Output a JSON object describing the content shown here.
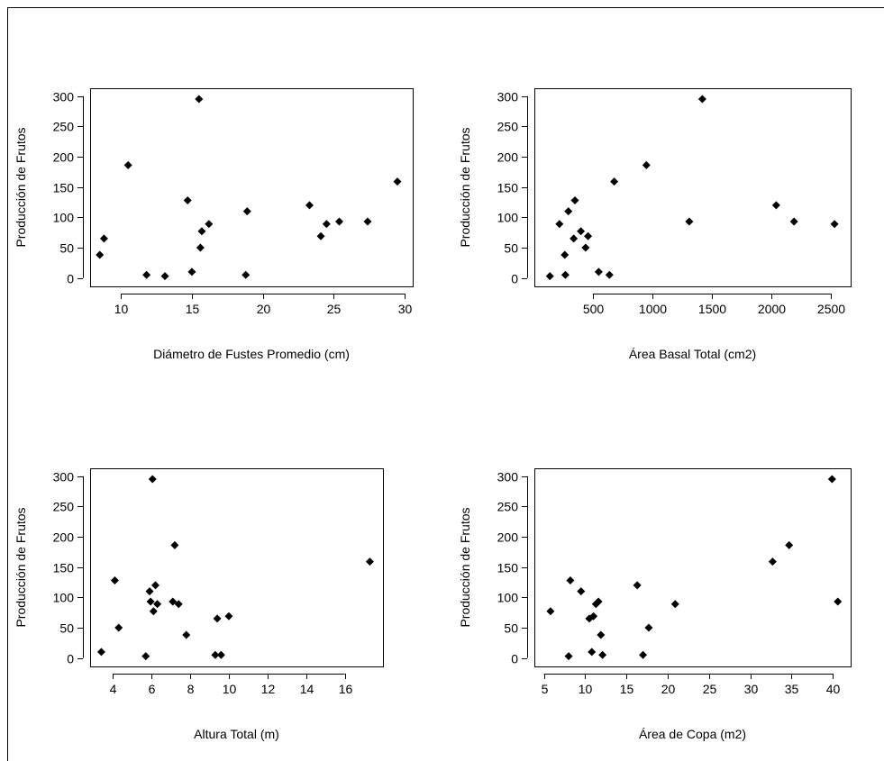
{
  "chart_data": [
    {
      "type": "scatter",
      "title": "",
      "xlabel": "Diámetro de Fustes Promedio (cm)",
      "ylabel": "Producción de Frutos",
      "xlim": [
        8.2,
        30.2
      ],
      "ylim": [
        -5,
        304
      ],
      "xticks": [
        10,
        15,
        20,
        25,
        30
      ],
      "yticks": [
        0,
        50,
        100,
        150,
        200,
        250,
        300
      ],
      "marker": "diamond",
      "grid": false,
      "points": [
        {
          "x": 8.5,
          "y": 38
        },
        {
          "x": 8.8,
          "y": 65
        },
        {
          "x": 10.5,
          "y": 186
        },
        {
          "x": 11.8,
          "y": 5
        },
        {
          "x": 13.1,
          "y": 3
        },
        {
          "x": 14.7,
          "y": 128
        },
        {
          "x": 15.0,
          "y": 10
        },
        {
          "x": 15.5,
          "y": 295
        },
        {
          "x": 15.6,
          "y": 50
        },
        {
          "x": 15.7,
          "y": 77
        },
        {
          "x": 16.2,
          "y": 89
        },
        {
          "x": 18.8,
          "y": 5
        },
        {
          "x": 18.9,
          "y": 110
        },
        {
          "x": 23.3,
          "y": 120
        },
        {
          "x": 24.1,
          "y": 69
        },
        {
          "x": 24.5,
          "y": 89
        },
        {
          "x": 25.4,
          "y": 93
        },
        {
          "x": 27.4,
          "y": 93
        },
        {
          "x": 29.5,
          "y": 159
        }
      ]
    },
    {
      "type": "scatter",
      "title": "",
      "xlabel": "Área Basal Total (cm2)",
      "ylabel": "Producción de Frutos",
      "xlim": [
        55,
        2620
      ],
      "ylim": [
        -5,
        304
      ],
      "xticks": [
        500,
        1000,
        1500,
        2000,
        2500
      ],
      "yticks": [
        0,
        50,
        100,
        150,
        200,
        250,
        300
      ],
      "marker": "diamond",
      "grid": false,
      "points": [
        {
          "x": 140,
          "y": 3
        },
        {
          "x": 220,
          "y": 89
        },
        {
          "x": 265,
          "y": 38
        },
        {
          "x": 270,
          "y": 5
        },
        {
          "x": 295,
          "y": 110
        },
        {
          "x": 340,
          "y": 65
        },
        {
          "x": 350,
          "y": 128
        },
        {
          "x": 400,
          "y": 77
        },
        {
          "x": 440,
          "y": 50
        },
        {
          "x": 460,
          "y": 69
        },
        {
          "x": 550,
          "y": 10
        },
        {
          "x": 640,
          "y": 5
        },
        {
          "x": 680,
          "y": 159
        },
        {
          "x": 950,
          "y": 186
        },
        {
          "x": 1310,
          "y": 93
        },
        {
          "x": 1420,
          "y": 295
        },
        {
          "x": 2040,
          "y": 120
        },
        {
          "x": 2190,
          "y": 93
        },
        {
          "x": 2530,
          "y": 89
        }
      ]
    },
    {
      "type": "scatter",
      "title": "",
      "xlabel": "Altura Total (m)",
      "ylabel": "Producción de Frutos",
      "xlim": [
        3.1,
        17.7
      ],
      "ylim": [
        -5,
        304
      ],
      "xticks": [
        4,
        6,
        8,
        10,
        12,
        14,
        16
      ],
      "yticks": [
        0,
        50,
        100,
        150,
        200,
        250,
        300
      ],
      "marker": "diamond",
      "grid": false,
      "points": [
        {
          "x": 3.4,
          "y": 10
        },
        {
          "x": 4.1,
          "y": 128
        },
        {
          "x": 4.3,
          "y": 50
        },
        {
          "x": 5.7,
          "y": 3
        },
        {
          "x": 5.9,
          "y": 110
        },
        {
          "x": 5.95,
          "y": 93
        },
        {
          "x": 6.05,
          "y": 295
        },
        {
          "x": 6.1,
          "y": 77
        },
        {
          "x": 6.2,
          "y": 120
        },
        {
          "x": 6.3,
          "y": 89
        },
        {
          "x": 7.1,
          "y": 93
        },
        {
          "x": 7.2,
          "y": 186
        },
        {
          "x": 7.4,
          "y": 89
        },
        {
          "x": 7.8,
          "y": 38
        },
        {
          "x": 9.3,
          "y": 5
        },
        {
          "x": 9.4,
          "y": 65
        },
        {
          "x": 9.6,
          "y": 5
        },
        {
          "x": 10.0,
          "y": 69
        },
        {
          "x": 17.3,
          "y": 159
        }
      ]
    },
    {
      "type": "scatter",
      "title": "",
      "xlabel": "Área de Copa (m2)",
      "ylabel": "Producción de Frutos",
      "xlim": [
        4.5,
        41.5
      ],
      "ylim": [
        -5,
        304
      ],
      "xticks": [
        5,
        10,
        15,
        20,
        25,
        30,
        35,
        40
      ],
      "yticks": [
        0,
        50,
        100,
        150,
        200,
        250,
        300
      ],
      "marker": "diamond",
      "grid": false,
      "points": [
        {
          "x": 5.8,
          "y": 77
        },
        {
          "x": 8.0,
          "y": 3
        },
        {
          "x": 8.2,
          "y": 128
        },
        {
          "x": 9.5,
          "y": 110
        },
        {
          "x": 10.5,
          "y": 65
        },
        {
          "x": 10.8,
          "y": 10
        },
        {
          "x": 11.0,
          "y": 69
        },
        {
          "x": 11.3,
          "y": 89
        },
        {
          "x": 11.6,
          "y": 93
        },
        {
          "x": 11.9,
          "y": 38
        },
        {
          "x": 12.1,
          "y": 5
        },
        {
          "x": 16.3,
          "y": 120
        },
        {
          "x": 17.0,
          "y": 5
        },
        {
          "x": 17.7,
          "y": 50
        },
        {
          "x": 20.9,
          "y": 89
        },
        {
          "x": 32.7,
          "y": 159
        },
        {
          "x": 34.7,
          "y": 186
        },
        {
          "x": 39.9,
          "y": 295
        },
        {
          "x": 40.6,
          "y": 93
        }
      ]
    }
  ]
}
